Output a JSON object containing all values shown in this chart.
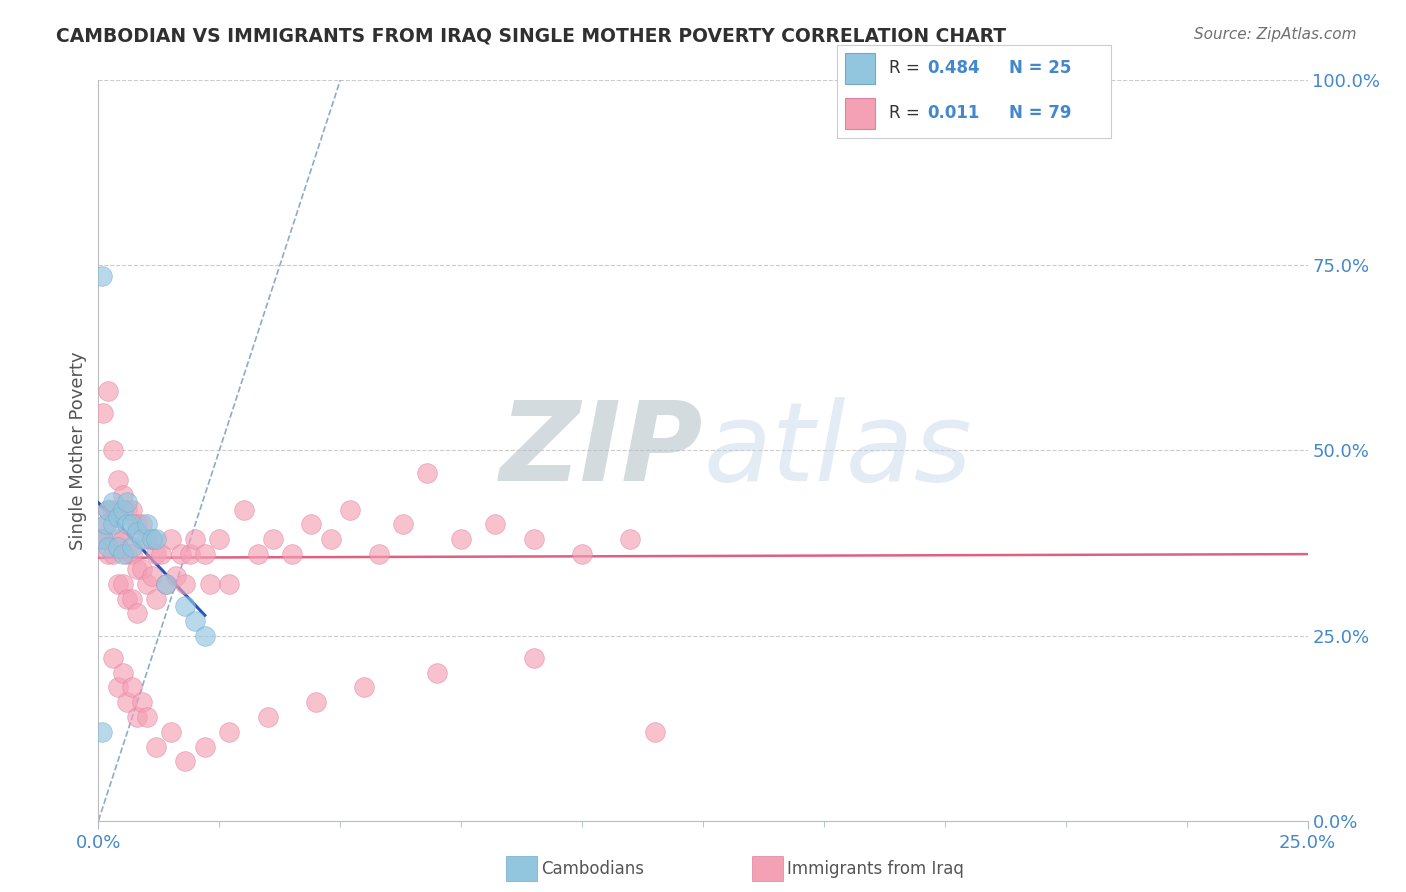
{
  "title": "CAMBODIAN VS IMMIGRANTS FROM IRAQ SINGLE MOTHER POVERTY CORRELATION CHART",
  "source": "Source: ZipAtlas.com",
  "ylabel": "Single Mother Poverty",
  "cambodian_color": "#92C5DE",
  "iraq_color": "#F4A0B5",
  "cambodian_trend_color": "#2255BB",
  "iraq_trend_color": "#E06080",
  "diagonal_color": "#8AACCC",
  "watermark_zip": "ZIP",
  "watermark_atlas": "atlas",
  "background_color": "#FFFFFF",
  "xlim": [
    0.0,
    0.25
  ],
  "ylim": [
    0.0,
    1.0
  ],
  "legend_cam_r": "R = ",
  "legend_cam_rv": "0.484",
  "legend_cam_n": "N = 25",
  "legend_iraq_r": "R =  ",
  "legend_iraq_rv": "0.011",
  "legend_iraq_n": "N = 79",
  "cam_x": [
    0.0008,
    0.0008,
    0.001,
    0.0015,
    0.002,
    0.002,
    0.003,
    0.003,
    0.004,
    0.004,
    0.005,
    0.005,
    0.006,
    0.006,
    0.007,
    0.007,
    0.008,
    0.009,
    0.01,
    0.011,
    0.012,
    0.014,
    0.018,
    0.02,
    0.022
  ],
  "cam_y": [
    0.12,
    0.735,
    0.38,
    0.4,
    0.42,
    0.37,
    0.4,
    0.43,
    0.41,
    0.37,
    0.42,
    0.36,
    0.4,
    0.43,
    0.37,
    0.4,
    0.39,
    0.38,
    0.4,
    0.38,
    0.38,
    0.32,
    0.29,
    0.27,
    0.25
  ],
  "iraq_x": [
    0.0005,
    0.001,
    0.001,
    0.0015,
    0.002,
    0.002,
    0.002,
    0.003,
    0.003,
    0.003,
    0.004,
    0.004,
    0.004,
    0.005,
    0.005,
    0.005,
    0.006,
    0.006,
    0.006,
    0.007,
    0.007,
    0.007,
    0.008,
    0.008,
    0.008,
    0.009,
    0.009,
    0.01,
    0.01,
    0.011,
    0.011,
    0.012,
    0.012,
    0.013,
    0.014,
    0.015,
    0.016,
    0.017,
    0.018,
    0.019,
    0.02,
    0.022,
    0.023,
    0.025,
    0.027,
    0.03,
    0.033,
    0.036,
    0.04,
    0.044,
    0.048,
    0.052,
    0.058,
    0.063,
    0.068,
    0.075,
    0.082,
    0.09,
    0.1,
    0.11,
    0.003,
    0.004,
    0.005,
    0.006,
    0.007,
    0.008,
    0.009,
    0.01,
    0.012,
    0.015,
    0.018,
    0.022,
    0.027,
    0.035,
    0.045,
    0.055,
    0.07,
    0.09,
    0.115
  ],
  "iraq_y": [
    0.38,
    0.55,
    0.38,
    0.4,
    0.58,
    0.42,
    0.36,
    0.5,
    0.42,
    0.36,
    0.46,
    0.38,
    0.32,
    0.44,
    0.38,
    0.32,
    0.42,
    0.36,
    0.3,
    0.42,
    0.36,
    0.3,
    0.4,
    0.34,
    0.28,
    0.4,
    0.34,
    0.38,
    0.32,
    0.38,
    0.33,
    0.36,
    0.3,
    0.36,
    0.32,
    0.38,
    0.33,
    0.36,
    0.32,
    0.36,
    0.38,
    0.36,
    0.32,
    0.38,
    0.32,
    0.42,
    0.36,
    0.38,
    0.36,
    0.4,
    0.38,
    0.42,
    0.36,
    0.4,
    0.47,
    0.38,
    0.4,
    0.38,
    0.36,
    0.38,
    0.22,
    0.18,
    0.2,
    0.16,
    0.18,
    0.14,
    0.16,
    0.14,
    0.1,
    0.12,
    0.08,
    0.1,
    0.12,
    0.14,
    0.16,
    0.18,
    0.2,
    0.22,
    0.12
  ]
}
